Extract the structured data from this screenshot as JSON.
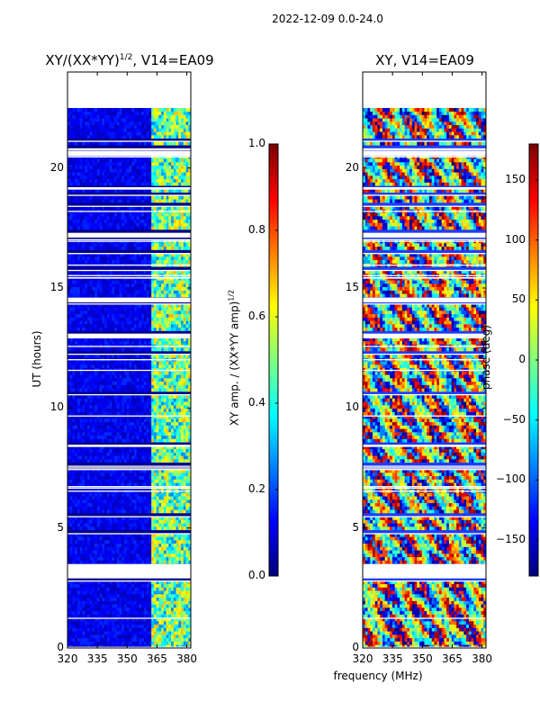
{
  "suptitle": "2022-12-09 0.0-24.0",
  "left_panel": {
    "title_main": "XY/(XX*YY)",
    "title_sup": "1/2",
    "title_tail": ", V14=EA09",
    "ylabel": "UT (hours)"
  },
  "right_panel": {
    "title": "XY, V14=EA09"
  },
  "xlabel": "frequency (MHz)",
  "amp_colorbar": {
    "label_main": "XY amp. / (XX*YY amp)",
    "label_sup": "1/2",
    "range": [
      0.0,
      1.0
    ],
    "ticks": [
      "0.0",
      "0.2",
      "0.4",
      "0.6",
      "0.8",
      "1.0"
    ]
  },
  "phase_colorbar": {
    "label": "phase (deg)",
    "range": [
      -180,
      180
    ],
    "ticks": [
      "−150",
      "−100",
      "−50",
      "0",
      "50",
      "100",
      "150"
    ]
  },
  "chart_data": [
    {
      "type": "heatmap",
      "title": "XY/(XX*YY)^1/2, V14=EA09",
      "xlabel": "",
      "ylabel": "UT (hours)",
      "xlim": [
        320,
        382
      ],
      "ylim": [
        0,
        24
      ],
      "xticks": [
        "320",
        "335",
        "350",
        "365",
        "380"
      ],
      "yticks": [
        "0",
        "5",
        "10",
        "15",
        "20"
      ],
      "colormap": "jet",
      "value_range": [
        0.0,
        1.0
      ],
      "data_time_range_hours": [
        0.0,
        22.5
      ],
      "bright_band_mhz": [
        361,
        382
      ]
    },
    {
      "type": "heatmap",
      "title": "XY, V14=EA09",
      "xlabel": "frequency (MHz)",
      "ylabel": "",
      "xlim": [
        320,
        382
      ],
      "ylim": [
        0,
        24
      ],
      "xticks": [
        "320",
        "335",
        "350",
        "365",
        "380"
      ],
      "yticks": [
        "0",
        "5",
        "10",
        "15",
        "20"
      ],
      "colormap": "jet",
      "value_range": [
        -180,
        180
      ],
      "data_time_range_hours": [
        0.0,
        22.5
      ]
    }
  ]
}
